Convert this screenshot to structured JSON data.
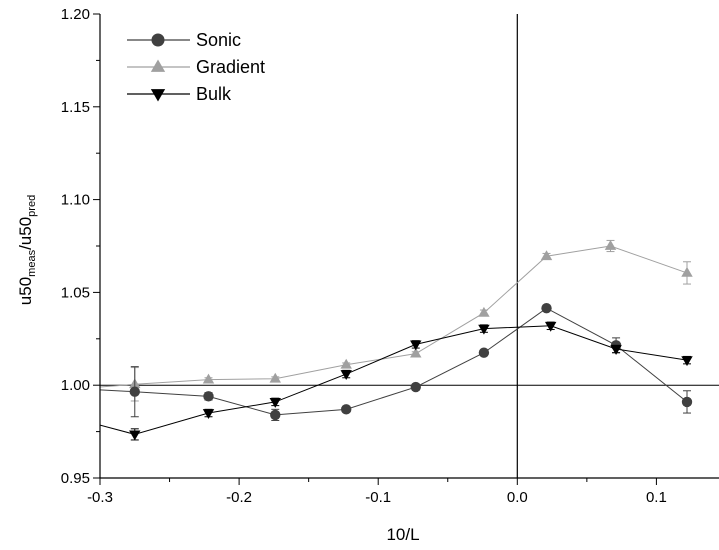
{
  "chart_data": {
    "type": "scatter",
    "xlabel": "10/L",
    "ylabel": {
      "main1": "u50",
      "sub1": "meas",
      "sep": "/u50",
      "sub2": "pred"
    },
    "xlim": [
      -0.3,
      0.145
    ],
    "ylim": [
      0.95,
      1.2
    ],
    "x_ticks": [
      -0.3,
      -0.2,
      -0.1,
      0.0,
      0.1
    ],
    "x_tick_labels": [
      "-0.3",
      "-0.2",
      "-0.1",
      "0.0",
      "0.1"
    ],
    "y_ticks": [
      0.95,
      1.0,
      1.05,
      1.1,
      1.15,
      1.2
    ],
    "y_tick_labels": [
      "0.95",
      "1.00",
      "1.05",
      "1.10",
      "1.15",
      "1.20"
    ],
    "reference_lines": {
      "horizontal_y": 1.0,
      "vertical_x": 0.0
    },
    "grid": false,
    "legend_position": "top-left",
    "series": [
      {
        "name": "Sonic",
        "marker": "circle",
        "color": "#404040",
        "x": [
          -0.275,
          -0.222,
          -0.174,
          -0.123,
          -0.073,
          -0.024,
          0.021,
          0.071,
          0.122
        ],
        "y": [
          0.9965,
          0.994,
          0.984,
          0.987,
          0.999,
          1.0175,
          1.0415,
          1.0215,
          0.991
        ],
        "err": [
          0.0135,
          0.002,
          0.003,
          0.0015,
          0.0015,
          0.0015,
          0.0015,
          0.004,
          0.006
        ],
        "line_extends_left_to": [
          -0.3,
          0.9975
        ]
      },
      {
        "name": "Gradient",
        "marker": "triangle-up",
        "color": "#a0a0a0",
        "x": [
          -0.275,
          -0.222,
          -0.174,
          -0.123,
          -0.073,
          -0.024,
          0.021,
          0.067,
          0.122
        ],
        "y": [
          1.0005,
          1.003,
          1.0035,
          1.011,
          1.017,
          1.039,
          1.0695,
          1.075,
          1.0605
        ],
        "err": [
          0.009,
          0.001,
          0.001,
          0.001,
          0.001,
          0.0015,
          0.0015,
          0.003,
          0.006
        ],
        "line_extends_left_to": [
          -0.3,
          0.999
        ]
      },
      {
        "name": "Bulk",
        "marker": "triangle-down",
        "color": "#000000",
        "x": [
          -0.275,
          -0.222,
          -0.174,
          -0.123,
          -0.073,
          -0.024,
          0.024,
          0.071,
          0.122
        ],
        "y": [
          0.9735,
          0.985,
          0.991,
          1.006,
          1.022,
          1.0305,
          1.032,
          1.0195,
          1.0135
        ],
        "err": [
          0.003,
          0.002,
          0.002,
          0.002,
          0.002,
          0.002,
          0.002,
          0.002,
          0.002
        ],
        "line_extends_left_to": [
          -0.3,
          0.9785
        ]
      }
    ]
  }
}
